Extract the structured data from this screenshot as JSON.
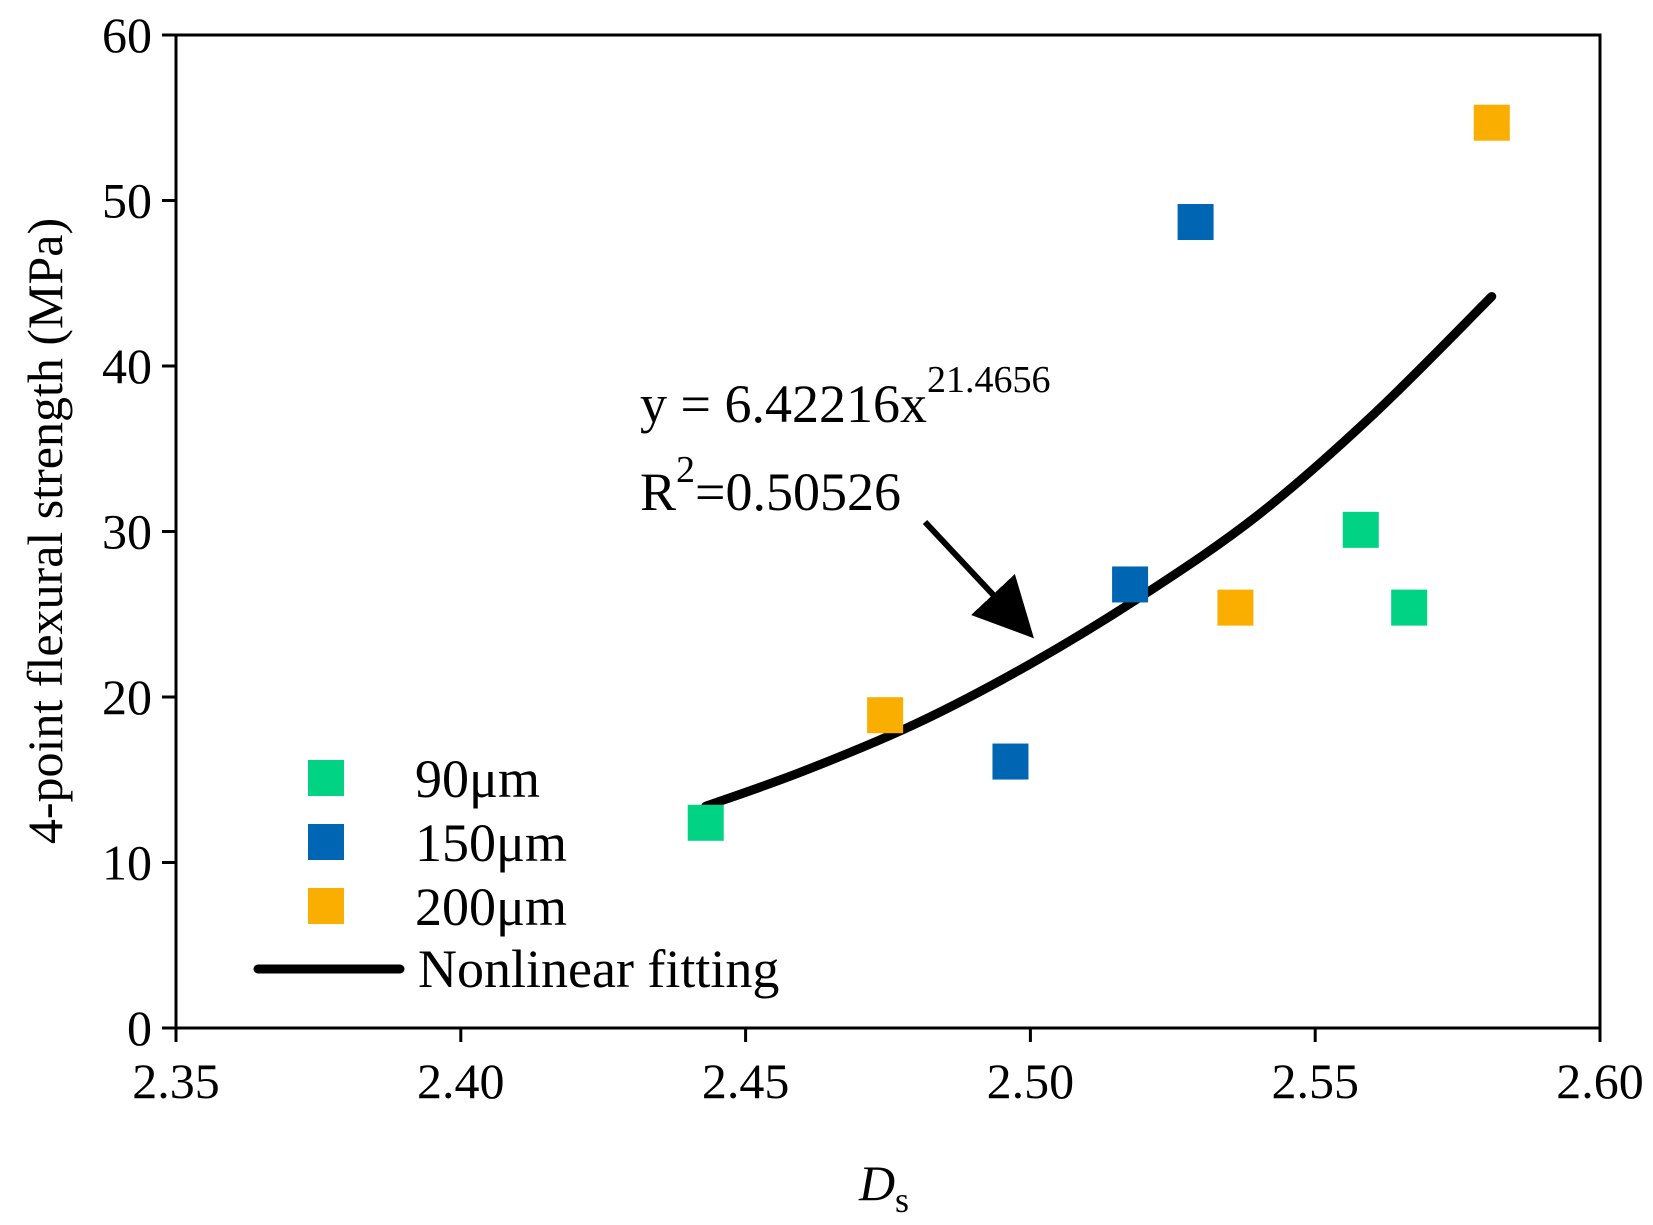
{
  "chart_data": {
    "type": "scatter",
    "title": "",
    "xlabel_main": "D",
    "xlabel_sub": "s",
    "ylabel": "4-point flexural strength (MPa)",
    "xlim": [
      2.35,
      2.6
    ],
    "ylim": [
      0,
      60
    ],
    "xticks": [
      "2.35",
      "2.40",
      "2.45",
      "2.50",
      "2.55",
      "2.60"
    ],
    "xtick_values": [
      2.35,
      2.4,
      2.45,
      2.5,
      2.55,
      2.6
    ],
    "yticks": [
      "0",
      "10",
      "20",
      "30",
      "40",
      "50",
      "60"
    ],
    "ytick_values": [
      0,
      10,
      20,
      30,
      40,
      50,
      60
    ],
    "grid": false,
    "legend_position": "bottom-left",
    "series": [
      {
        "name": "90μm",
        "color": "#00D384",
        "marker": "square",
        "points": [
          [
            2.443,
            12.4
          ],
          [
            2.558,
            30.1
          ],
          [
            2.5665,
            25.4
          ]
        ]
      },
      {
        "name": "150μm",
        "color": "#0066B3",
        "marker": "square",
        "points": [
          [
            2.4965,
            16.1
          ],
          [
            2.5175,
            26.8
          ],
          [
            2.529,
            48.7
          ]
        ]
      },
      {
        "name": "200μm",
        "color": "#F9AE00",
        "marker": "square",
        "points": [
          [
            2.4745,
            18.9
          ],
          [
            2.536,
            25.4
          ],
          [
            2.581,
            54.7
          ]
        ]
      }
    ],
    "fit": {
      "name": "Nonlinear fitting",
      "color": "#000000",
      "points": [
        [
          2.443,
          13.4
        ],
        [
          2.46,
          15.5
        ],
        [
          2.48,
          18.4
        ],
        [
          2.5,
          22.0
        ],
        [
          2.52,
          26.2
        ],
        [
          2.54,
          31.0
        ],
        [
          2.56,
          37.0
        ],
        [
          2.581,
          44.2
        ]
      ]
    },
    "annotation": {
      "equation_prefix": "y = 6.42216x",
      "equation_exponent": "21.4656",
      "r2_prefix": "R",
      "r2_sup": "2",
      "r2_value": "=0.50526",
      "arrow_to": [
        2.4995,
        24.0
      ]
    }
  }
}
